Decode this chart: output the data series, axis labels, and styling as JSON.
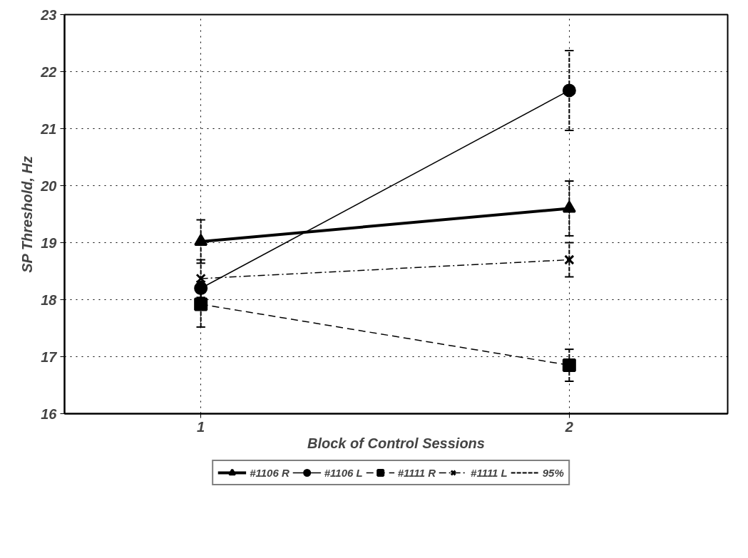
{
  "chart_data": {
    "type": "line",
    "xlabel": "Block of Control Sessions",
    "ylabel": "SP Threshold, Hz",
    "x": [
      1,
      2
    ],
    "xlim": [
      0.63,
      2.43
    ],
    "xticks": [
      1,
      2
    ],
    "ylim": [
      16,
      23
    ],
    "yticks": [
      16,
      17,
      18,
      19,
      20,
      21,
      22,
      23
    ],
    "grid": true,
    "legend": "bottom",
    "series": [
      {
        "name": "#1106 R",
        "color": "#000000",
        "values": [
          19.02,
          19.6
        ],
        "errors": [
          0.38,
          0.48
        ],
        "marker": "triangle",
        "line_style": "solid"
      },
      {
        "name": "#1106 L",
        "color": "#000000",
        "values": [
          18.2,
          21.67
        ],
        "errors": [
          null,
          0.7
        ],
        "marker": "circle",
        "line_style": "solid"
      },
      {
        "name": "#1111 R",
        "color": "#000000",
        "values": [
          17.92,
          16.85
        ],
        "errors": [
          0.4,
          0.28
        ],
        "marker": "square",
        "line_style": "dashed"
      },
      {
        "name": "#1111 L",
        "color": "#000000",
        "values": [
          18.37,
          18.7
        ],
        "errors": [
          0.33,
          0.3
        ],
        "marker": "cross",
        "line_style": "dashdot"
      }
    ],
    "annotations": [
      "95%"
    ]
  }
}
